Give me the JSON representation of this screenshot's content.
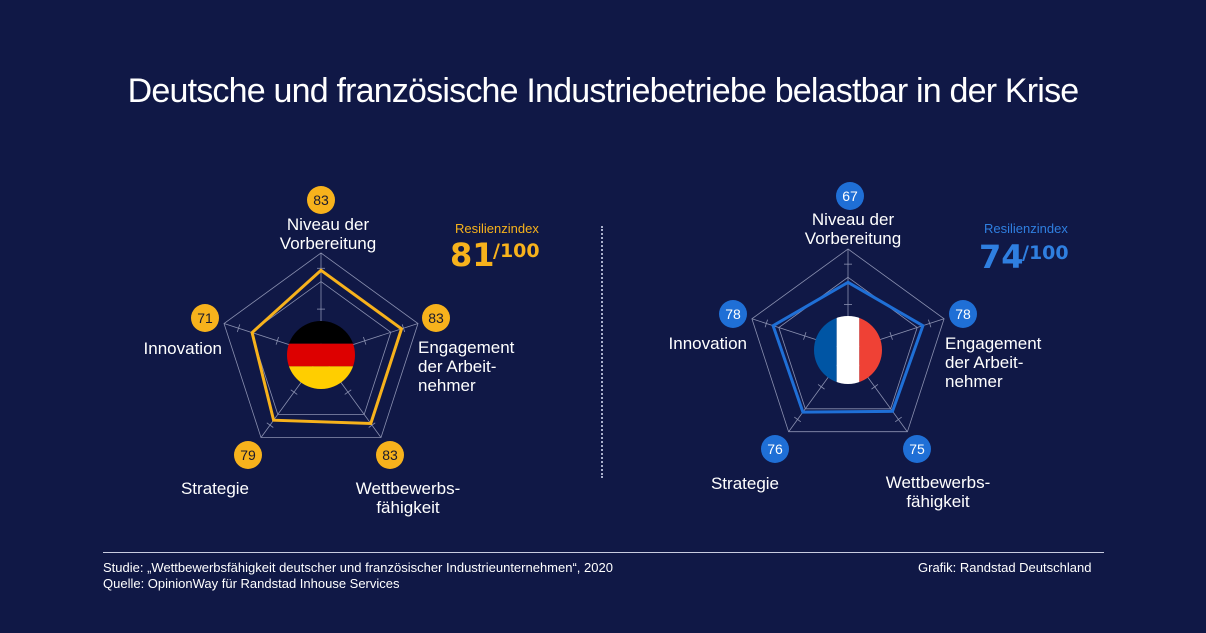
{
  "title": "Deutsche und französische Industriebetriebe belastbar in der Krise",
  "chart_data": [
    {
      "type": "radar",
      "country": "de",
      "flag": "germany-flag",
      "color": "#f7b21c",
      "categories": [
        "Niveau der Vorbereitung",
        "Engagement der Arbeitnehmer",
        "Wettbewerbsfähigkeit",
        "Strategie",
        "Innovation"
      ],
      "values": [
        83,
        83,
        83,
        79,
        71
      ],
      "value_labels": [
        "83",
        "83",
        "83",
        "79",
        "71"
      ],
      "resilience_label": "Resilienzindex",
      "resilience_value": "81",
      "resilience_max": "/100"
    },
    {
      "type": "radar",
      "country": "fr",
      "flag": "france-flag",
      "color": "#1f6fd6",
      "categories": [
        "Niveau der Vorbereitung",
        "Engagement der Arbeitnehmer",
        "Wettbewerbsfähigkeit",
        "Strategie",
        "Innovation"
      ],
      "values": [
        67,
        78,
        75,
        76,
        78
      ],
      "value_labels": [
        "67",
        "78",
        "75",
        "76",
        "78"
      ],
      "resilience_label": "Resilienzindex",
      "resilience_value": "74",
      "resilience_max": "/100"
    }
  ],
  "footer": {
    "study": "Studie: „Wettbewerbsfähigkeit deutscher und französischer Industrieunternehmen“, 2020",
    "source": "Quelle: OpinionWay für Randstad Inhouse Services",
    "credit": "Grafik: Randstad Deutschland"
  }
}
